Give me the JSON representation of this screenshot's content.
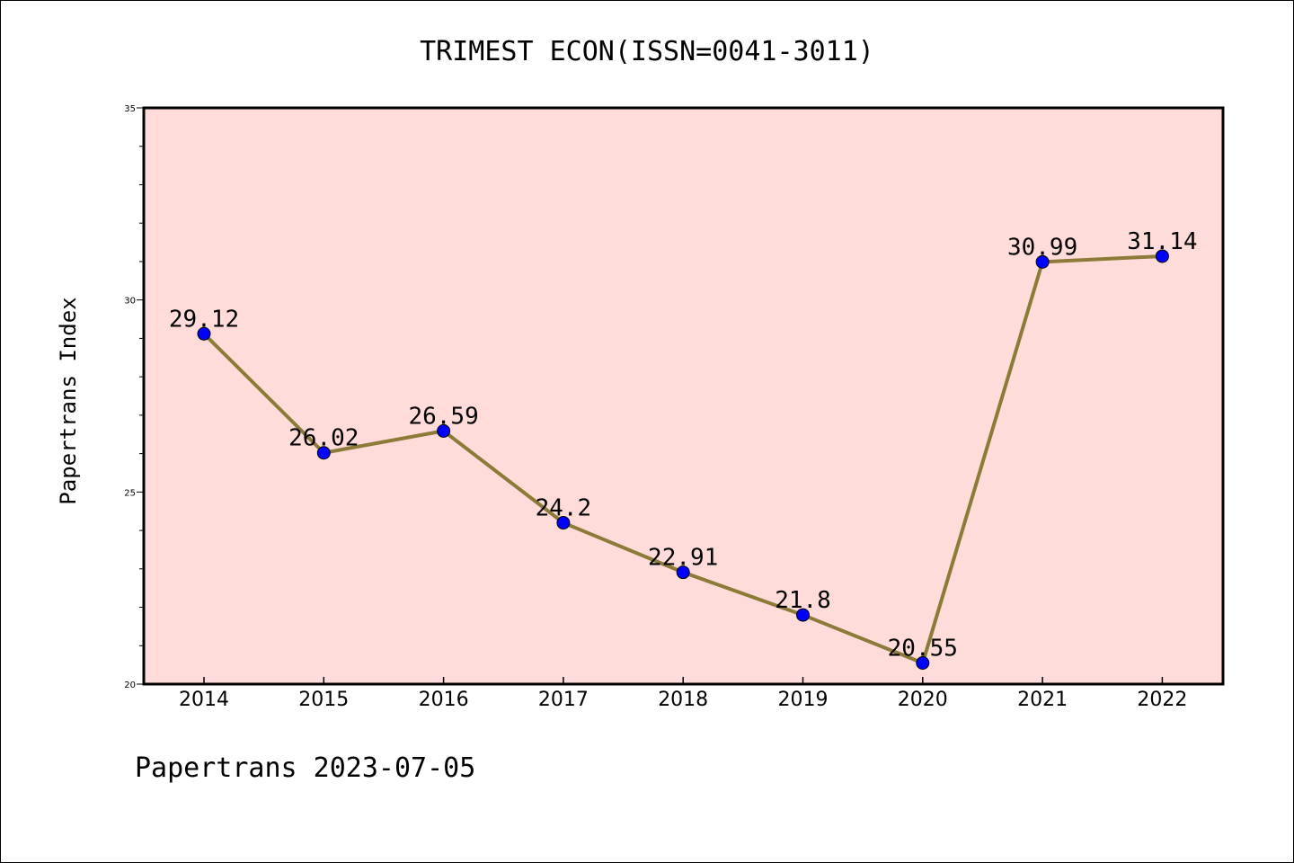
{
  "chart_data": {
    "type": "line",
    "title": "TRIMEST ECON(ISSN=0041-3011)",
    "xlabel": "",
    "ylabel": "Papertrans Index",
    "categories": [
      "2014",
      "2015",
      "2016",
      "2017",
      "2018",
      "2019",
      "2020",
      "2021",
      "2022"
    ],
    "series": [
      {
        "values": [
          29.12,
          26.02,
          26.59,
          24.2,
          22.91,
          21.8,
          20.55,
          30.99,
          31.14
        ],
        "data_labels": [
          "29.12",
          "26.02",
          "26.59",
          "24.2",
          "22.91",
          "21.8",
          "20.55",
          "30.99",
          "31.14"
        ]
      }
    ],
    "ylim": [
      20,
      35
    ],
    "yticks": [
      20,
      25,
      30,
      35
    ],
    "ytick_labels": [
      "20",
      "25",
      "30",
      "35"
    ],
    "y_minor_step": 1,
    "grid": false,
    "legend": "none",
    "colors": {
      "plot_background": "#FFDCDA",
      "line": "#8C7B38",
      "marker": "#0000FF",
      "axes": "#000000"
    }
  },
  "footer": {
    "text": "Papertrans 2023-07-05"
  }
}
